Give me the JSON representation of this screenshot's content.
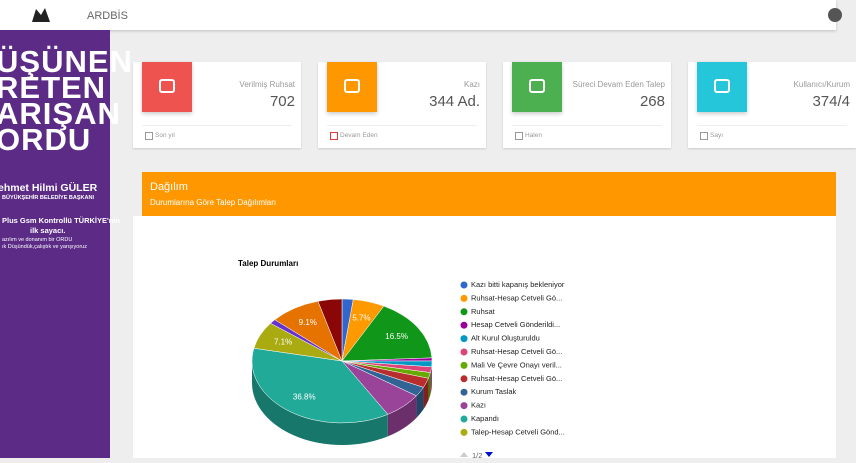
{
  "topbar": {
    "app_name": "ARDBİS"
  },
  "sidebar": {
    "slogan": [
      "ÜŞÜNEN",
      "RETEN",
      "ARIŞAN",
      "ORDU"
    ],
    "person": "ehmet Hilmi GÜLER",
    "role": "BÜYÜKŞEHİR BELEDİYE BAŞKANI",
    "lines": [
      "Plus Gsm Kontrollü TÜRKİYE'nin",
      "ilk sayacı.",
      "azılım ve donanım bir ORDU",
      "ık Düşündük,çalıştık ve yarışıyoruz"
    ]
  },
  "cards": [
    {
      "label": "Verilmiş Ruhsat",
      "value": "702",
      "footer": "Son yıl",
      "color": "#ef5350"
    },
    {
      "label": "Kazı",
      "value": "344 Ad.",
      "footer": "Devam Eden",
      "color": "#ff9800"
    },
    {
      "label": "Süreci Devam Eden Talep",
      "value": "268",
      "footer": "Halen",
      "color": "#4caf50"
    },
    {
      "label": "Kullanıcı/Kurum",
      "value": "374/4",
      "footer": "Sayı",
      "color": "#26c6da"
    }
  ],
  "panel": {
    "title": "Dağılım",
    "subtitle": "Durumlarına Göre Talep Dağılımları"
  },
  "pie_chart": {
    "type": "pie",
    "title": "Talep Durumları",
    "categories": [
      "Kazı bitti kapanış bekleniyor",
      "Ruhsat-Hesap Cetveli Gö...",
      "Ruhsat",
      "Hesap Cetveli Gönderildi...",
      "Alt Kurul Oluşturuldu",
      "Ruhsat-Hesap Cetveli Gö...",
      "Mali Ve Çevre Onayı veril...",
      "Ruhsat-Hesap Cetveli Gö...",
      "Kurum Taslak",
      "Kazı",
      "Kapandı",
      "Talep-Hesap Cetveli Gönd...",
      null,
      null,
      null
    ],
    "values": [
      2.0,
      5.7,
      16.5,
      0.8,
      1.5,
      1.5,
      1.5,
      2.5,
      2.5,
      7.0,
      36.8,
      7.1,
      1.2,
      9.1,
      4.3
    ],
    "value_labels": [
      null,
      "5.7%",
      "16.5%",
      null,
      null,
      null,
      null,
      null,
      null,
      null,
      "36.8%",
      "7.1%",
      null,
      "9.1%",
      null
    ],
    "colors": [
      "#3366cc",
      "#ff9900",
      "#109618",
      "#990099",
      "#0099c6",
      "#dd4477",
      "#66aa00",
      "#b82e2e",
      "#316395",
      "#994499",
      "#22aa99",
      "#aaaa11",
      "#6633cc",
      "#e67300",
      "#8b0707"
    ],
    "legend_page": "1/2"
  }
}
